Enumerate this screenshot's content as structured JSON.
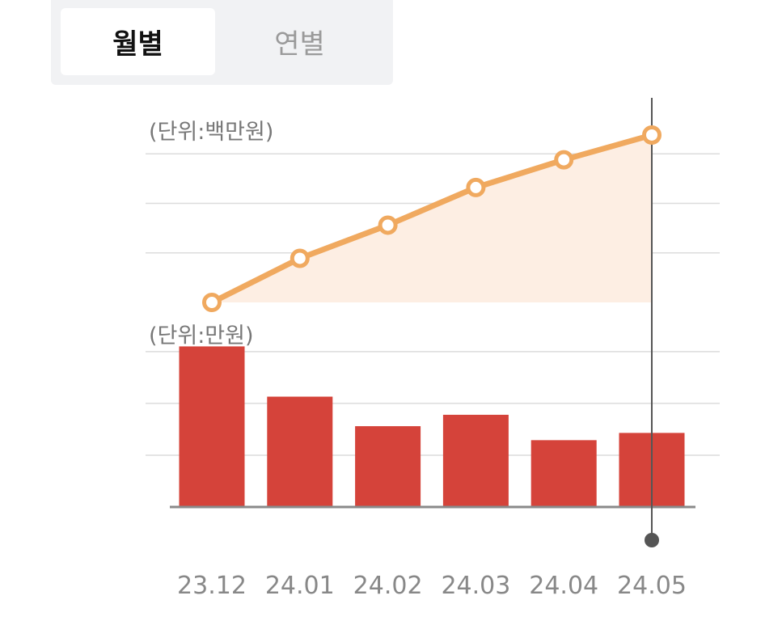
{
  "tabs": [
    {
      "label": "월별",
      "active": true
    },
    {
      "label": "연별",
      "active": false
    }
  ],
  "chart_data": [
    {
      "type": "line",
      "unit_label": "(단위:백만원)",
      "x": [
        "23.12",
        "24.01",
        "24.02",
        "24.03",
        "24.04",
        "24.05"
      ],
      "values": [
        0.0,
        0.89,
        1.56,
        2.32,
        2.88,
        3.38
      ],
      "ylim": [
        0,
        4.0
      ],
      "grid": true,
      "colors": {
        "line": "#f0a95f",
        "fill": "#fdeee3",
        "marker_fill": "#ffffff"
      }
    },
    {
      "type": "bar",
      "unit_label": "(단위:만원)",
      "categories": [
        "23.12",
        "24.01",
        "24.02",
        "24.03",
        "24.04",
        "24.05"
      ],
      "values": [
        3.1,
        2.13,
        1.56,
        1.78,
        1.29,
        1.43
      ],
      "ylim": [
        0,
        3.2
      ],
      "grid": true,
      "colors": {
        "bar": "#d5433a"
      }
    }
  ],
  "selected_category": "24.05",
  "colors": {
    "axis": "#8a8a8a",
    "grid": "#dcdcdc",
    "tick_text": "#888888",
    "cursor": "#555555"
  }
}
